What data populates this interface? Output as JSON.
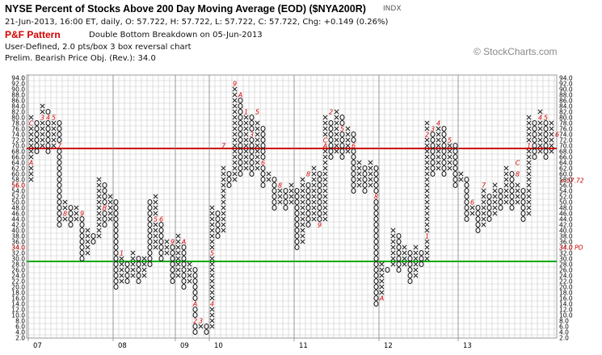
{
  "header": {
    "title": "NYSE Percent of Stocks Above 200 Day Moving Average (EOD) ($NYA200R)",
    "symbol_tag": "INDX",
    "ohlc": "21-Jun-2013, 16:00 ET, daily, O: 57.722, H: 57.722, L: 57.722, C: 57.722, Chg: +0.149 (0.26%)",
    "pf_label": "P&F Pattern",
    "pattern": "Double Bottom Breakdown on 05-Jun-2013",
    "settings": "User-Defined, 2.0 pts/box 3 box reversal chart",
    "target": "Prelim. Bearish Price Obj. (Rev.): 34.0",
    "watermark": "© StockCharts.com",
    "watermark_icon": "stockcharts-logo-icon"
  },
  "colors": {
    "background": "#ffffff",
    "grid": "#c8c8c8",
    "marks": "#000000",
    "month_marks": "#cc0000",
    "resistance": "#cc0000",
    "support": "#00aa00",
    "current_label": "#cc0000"
  },
  "chart_data": {
    "type": "point-and-figure",
    "box_size": 2,
    "reversal": 3,
    "y_range": [
      2,
      94
    ],
    "y_ticks": [
      "2.0",
      "4.0",
      "6.0",
      "8.0",
      "10.0",
      "12.0",
      "14.0",
      "16.0",
      "18.0",
      "20.0",
      "22.0",
      "24.0",
      "26.0",
      "28.0",
      "30.0",
      "32.0",
      "34.0",
      "36.0",
      "38.0",
      "40.0",
      "42.0",
      "44.0",
      "46.0",
      "48.0",
      "50.0",
      "52.0",
      "54.0",
      "56.0",
      "58.0",
      "60.0",
      "62.0",
      "64.0",
      "66.0",
      "68.0",
      "70.0",
      "72.0",
      "74.0",
      "76.0",
      "78.0",
      "80.0",
      "82.0",
      "84.0",
      "86.0",
      "88.0",
      "90.0",
      "92.0",
      "94.0"
    ],
    "year_labels": [
      {
        "label": "07",
        "column": 0
      },
      {
        "label": "08",
        "column": 15
      },
      {
        "label": "09",
        "column": 26
      },
      {
        "label": "10",
        "column": 32
      },
      {
        "label": "11",
        "column": 47
      },
      {
        "label": "12",
        "column": 62
      },
      {
        "label": "13",
        "column": 76
      }
    ],
    "horizontal_lines": [
      {
        "value": 69,
        "color": "#cc0000"
      },
      {
        "value": 29,
        "color": "#00aa00"
      }
    ],
    "current_value": 57.72,
    "current_label": "<-57.72",
    "price_objective": 34.0,
    "price_objective_label": "34.0 PO",
    "columns": [
      {
        "type": "X",
        "low": 58,
        "high": 80
      },
      {
        "type": "O",
        "low": 68,
        "high": 78
      },
      {
        "type": "X",
        "low": 70,
        "high": 84
      },
      {
        "type": "O",
        "low": 68,
        "high": 82
      },
      {
        "type": "X",
        "low": 70,
        "high": 80
      },
      {
        "type": "O",
        "low": 42,
        "high": 78
      },
      {
        "type": "X",
        "low": 44,
        "high": 50
      },
      {
        "type": "O",
        "low": 42,
        "high": 48
      },
      {
        "type": "X",
        "low": 44,
        "high": 48
      },
      {
        "type": "O",
        "low": 30,
        "high": 46
      },
      {
        "type": "X",
        "low": 32,
        "high": 40
      },
      {
        "type": "O",
        "low": 36,
        "high": 38
      },
      {
        "type": "X",
        "low": 38,
        "high": 58
      },
      {
        "type": "O",
        "low": 42,
        "high": 56
      },
      {
        "type": "X",
        "low": 44,
        "high": 52
      },
      {
        "type": "O",
        "low": 20,
        "high": 50
      },
      {
        "type": "X",
        "low": 22,
        "high": 30
      },
      {
        "type": "O",
        "low": 22,
        "high": 28
      },
      {
        "type": "X",
        "low": 24,
        "high": 32
      },
      {
        "type": "O",
        "low": 22,
        "high": 30
      },
      {
        "type": "X",
        "low": 24,
        "high": 30
      },
      {
        "type": "O",
        "low": 28,
        "high": 50
      },
      {
        "type": "X",
        "low": 34,
        "high": 52
      },
      {
        "type": "O",
        "low": 30,
        "high": 44
      },
      {
        "type": "X",
        "low": 32,
        "high": 36
      },
      {
        "type": "O",
        "low": 22,
        "high": 34
      },
      {
        "type": "X",
        "low": 24,
        "high": 38
      },
      {
        "type": "O",
        "low": 20,
        "high": 36
      },
      {
        "type": "X",
        "low": 22,
        "high": 28
      },
      {
        "type": "O",
        "low": 4,
        "high": 26
      },
      {
        "type": "X",
        "low": 6,
        "high": 8
      },
      {
        "type": "O",
        "low": 4,
        "high": 6
      },
      {
        "type": "X",
        "low": 6,
        "high": 48
      },
      {
        "type": "O",
        "low": 38,
        "high": 46
      },
      {
        "type": "X",
        "low": 40,
        "high": 62
      },
      {
        "type": "O",
        "low": 56,
        "high": 60
      },
      {
        "type": "X",
        "low": 58,
        "high": 92
      },
      {
        "type": "O",
        "low": 60,
        "high": 88
      },
      {
        "type": "X",
        "low": 62,
        "high": 82
      },
      {
        "type": "O",
        "low": 60,
        "high": 80
      },
      {
        "type": "X",
        "low": 62,
        "high": 78
      },
      {
        "type": "O",
        "low": 56,
        "high": 76
      },
      {
        "type": "X",
        "low": 58,
        "high": 60
      },
      {
        "type": "O",
        "low": 48,
        "high": 58
      },
      {
        "type": "X",
        "low": 50,
        "high": 56
      },
      {
        "type": "O",
        "low": 48,
        "high": 54
      },
      {
        "type": "X",
        "low": 50,
        "high": 56
      },
      {
        "type": "O",
        "low": 34,
        "high": 54
      },
      {
        "type": "X",
        "low": 36,
        "high": 58
      },
      {
        "type": "O",
        "low": 42,
        "high": 56
      },
      {
        "type": "X",
        "low": 44,
        "high": 62
      },
      {
        "type": "O",
        "low": 42,
        "high": 60
      },
      {
        "type": "X",
        "low": 44,
        "high": 80
      },
      {
        "type": "O",
        "low": 66,
        "high": 78
      },
      {
        "type": "X",
        "low": 68,
        "high": 82
      },
      {
        "type": "O",
        "low": 66,
        "high": 80
      },
      {
        "type": "X",
        "low": 68,
        "high": 76
      },
      {
        "type": "O",
        "low": 54,
        "high": 74
      },
      {
        "type": "X",
        "low": 56,
        "high": 64
      },
      {
        "type": "O",
        "low": 54,
        "high": 62
      },
      {
        "type": "X",
        "low": 56,
        "high": 64
      },
      {
        "type": "O",
        "low": 14,
        "high": 62
      },
      {
        "type": "X",
        "low": 16,
        "high": 28
      },
      {
        "type": "O",
        "low": 26,
        "high": 26
      },
      {
        "type": "X",
        "low": 28,
        "high": 40
      },
      {
        "type": "O",
        "low": 26,
        "high": 38
      },
      {
        "type": "X",
        "low": 28,
        "high": 34
      },
      {
        "type": "O",
        "low": 22,
        "high": 32
      },
      {
        "type": "X",
        "low": 24,
        "high": 34
      },
      {
        "type": "O",
        "low": 28,
        "high": 32
      },
      {
        "type": "X",
        "low": 30,
        "high": 78
      },
      {
        "type": "O",
        "low": 60,
        "high": 76
      },
      {
        "type": "X",
        "low": 62,
        "high": 78
      },
      {
        "type": "O",
        "low": 60,
        "high": 76
      },
      {
        "type": "X",
        "low": 62,
        "high": 72
      },
      {
        "type": "O",
        "low": 56,
        "high": 70
      },
      {
        "type": "X",
        "low": 58,
        "high": 60
      },
      {
        "type": "O",
        "low": 44,
        "high": 58
      },
      {
        "type": "X",
        "low": 46,
        "high": 50
      },
      {
        "type": "O",
        "low": 40,
        "high": 48
      },
      {
        "type": "X",
        "low": 42,
        "high": 54
      },
      {
        "type": "O",
        "low": 44,
        "high": 52
      },
      {
        "type": "X",
        "low": 46,
        "high": 56
      },
      {
        "type": "O",
        "low": 48,
        "high": 54
      },
      {
        "type": "X",
        "low": 50,
        "high": 62
      },
      {
        "type": "O",
        "low": 48,
        "high": 60
      },
      {
        "type": "X",
        "low": 50,
        "high": 56
      },
      {
        "type": "O",
        "low": 44,
        "high": 54
      },
      {
        "type": "X",
        "low": 46,
        "high": 80
      },
      {
        "type": "O",
        "low": 66,
        "high": 78
      },
      {
        "type": "X",
        "low": 68,
        "high": 82
      },
      {
        "type": "O",
        "low": 66,
        "high": 80
      },
      {
        "type": "X",
        "low": 68,
        "high": 78
      },
      {
        "type": "O",
        "low": 58,
        "high": 76
      }
    ],
    "month_marks": [
      {
        "column": 0,
        "value": 78,
        "label": "C"
      },
      {
        "column": 0,
        "value": 64,
        "label": "A"
      },
      {
        "column": 2,
        "value": 80,
        "label": "3"
      },
      {
        "column": 3,
        "value": 80,
        "label": "4"
      },
      {
        "column": 4,
        "value": 80,
        "label": "5"
      },
      {
        "column": 5,
        "value": 70,
        "label": "7"
      },
      {
        "column": 6,
        "value": 46,
        "label": "8"
      },
      {
        "column": 9,
        "value": 46,
        "label": "9"
      },
      {
        "column": 13,
        "value": 48,
        "label": "B"
      },
      {
        "column": 16,
        "value": 32,
        "label": "1"
      },
      {
        "column": 22,
        "value": 44,
        "label": "5"
      },
      {
        "column": 23,
        "value": 44,
        "label": "6"
      },
      {
        "column": 25,
        "value": 36,
        "label": "9"
      },
      {
        "column": 27,
        "value": 36,
        "label": "A"
      },
      {
        "column": 29,
        "value": 14,
        "label": "A"
      },
      {
        "column": 29,
        "value": 8,
        "label": "2"
      },
      {
        "column": 30,
        "value": 8,
        "label": "3"
      },
      {
        "column": 32,
        "value": 14,
        "label": "4"
      },
      {
        "column": 32,
        "value": 32,
        "label": "5"
      },
      {
        "column": 34,
        "value": 70,
        "label": "7"
      },
      {
        "column": 36,
        "value": 92,
        "label": "9"
      },
      {
        "column": 37,
        "value": 88,
        "label": "A"
      },
      {
        "column": 38,
        "value": 82,
        "label": "1"
      },
      {
        "column": 39,
        "value": 74,
        "label": "3"
      },
      {
        "column": 40,
        "value": 82,
        "label": "5"
      },
      {
        "column": 41,
        "value": 64,
        "label": "6"
      },
      {
        "column": 44,
        "value": 56,
        "label": "8"
      },
      {
        "column": 49,
        "value": 60,
        "label": "8"
      },
      {
        "column": 51,
        "value": 42,
        "label": "9"
      },
      {
        "column": 52,
        "value": 70,
        "label": "A"
      },
      {
        "column": 52,
        "value": 72,
        "label": "C"
      },
      {
        "column": 53,
        "value": 82,
        "label": "2"
      },
      {
        "column": 55,
        "value": 76,
        "label": "5"
      },
      {
        "column": 57,
        "value": 70,
        "label": "6"
      },
      {
        "column": 61,
        "value": 52,
        "label": "8"
      },
      {
        "column": 62,
        "value": 16,
        "label": "A"
      },
      {
        "column": 70,
        "value": 38,
        "label": "1"
      },
      {
        "column": 70,
        "value": 74,
        "label": "2"
      },
      {
        "column": 71,
        "value": 76,
        "label": "3"
      },
      {
        "column": 72,
        "value": 78,
        "label": "4"
      },
      {
        "column": 74,
        "value": 72,
        "label": "5"
      },
      {
        "column": 78,
        "value": 50,
        "label": "6"
      },
      {
        "column": 80,
        "value": 56,
        "label": "7"
      },
      {
        "column": 86,
        "value": 60,
        "label": "8"
      },
      {
        "column": 86,
        "value": 64,
        "label": "C"
      },
      {
        "column": 88,
        "value": 70,
        "label": "1"
      },
      {
        "column": 90,
        "value": 80,
        "label": "4"
      },
      {
        "column": 91,
        "value": 80,
        "label": "5"
      },
      {
        "column": 93,
        "value": 74,
        "label": "6"
      }
    ]
  }
}
